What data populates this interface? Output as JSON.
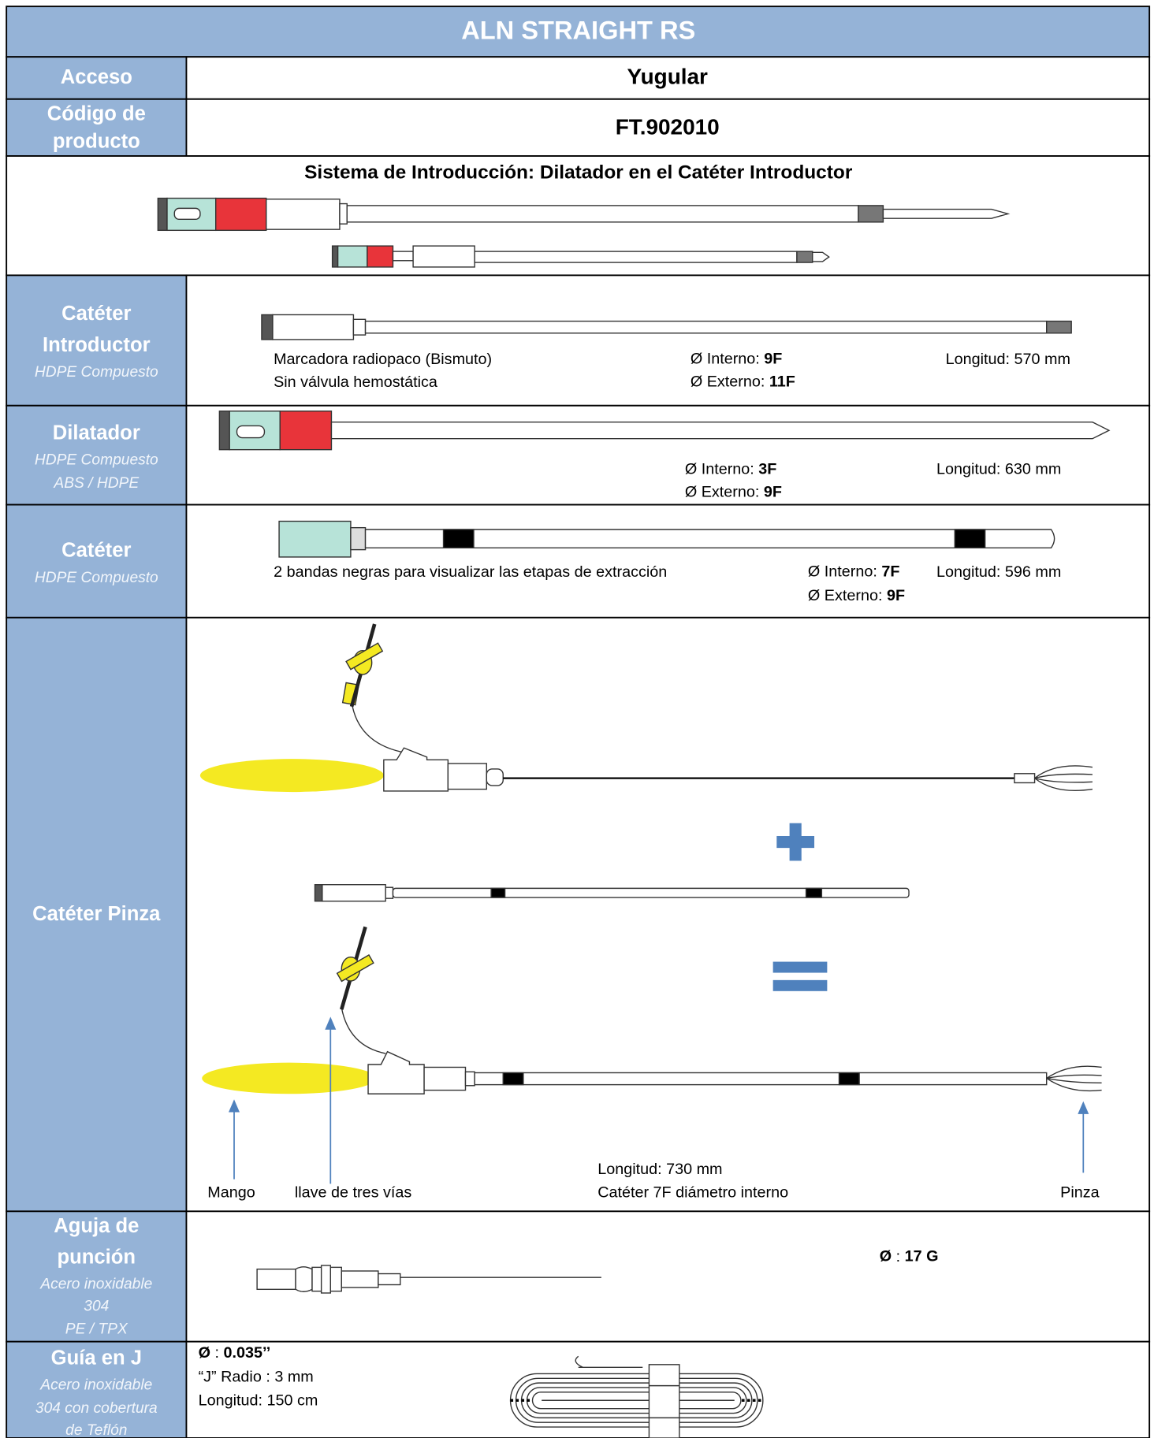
{
  "title": "ALN STRAIGHT RS",
  "acceso": {
    "label": "Acceso",
    "value": "Yugular"
  },
  "codigo": {
    "label": [
      "Código de",
      "producto"
    ],
    "value": "FT.902010"
  },
  "sistema": {
    "title": "Sistema de Introducción: Dilatador en el Catéter Introductor"
  },
  "introductor": {
    "label": [
      "Catéter",
      "Introductor"
    ],
    "materials": [
      "HDPE Compuesto"
    ],
    "notes": [
      "Marcadora radiopaco (Bismuto)",
      "Sin válvula hemostática"
    ],
    "interno_label": "Ø Interno:",
    "interno": "9F",
    "externo_label": "Ø Externo:",
    "externo": "11F",
    "longitud": "Longitud: 570 mm"
  },
  "dilatador": {
    "label": [
      "Dilatador"
    ],
    "materials": [
      "HDPE Compuesto",
      "ABS / HDPE"
    ],
    "interno_label": "Ø Interno:",
    "interno": "3F",
    "externo_label": "Ø Externo:",
    "externo": "9F",
    "longitud": "Longitud: 630 mm"
  },
  "cateter": {
    "label": [
      "Catéter"
    ],
    "materials": [
      "HDPE Compuesto"
    ],
    "note": "2 bandas negras para visualizar las etapas de extracción",
    "interno_label": "Ø Interno:",
    "interno": "7F",
    "externo_label": "Ø Externo:",
    "externo": "9F",
    "longitud": "Longitud: 596 mm"
  },
  "pinza": {
    "label": [
      "Catéter Pinza"
    ],
    "mango": "Mango",
    "llave": "llave de tres vías",
    "longitud": "Longitud: 730 mm",
    "diametro": "Catéter 7F diámetro interno",
    "pinza": "Pinza"
  },
  "aguja": {
    "label": [
      "Aguja de",
      "punción"
    ],
    "materials": [
      "Acero inoxidable",
      "304",
      "PE / TPX"
    ],
    "diametro_label": "Ø",
    "diametro": "17 G"
  },
  "guia": {
    "label": [
      "Guía en J"
    ],
    "materials": [
      "Acero inoxidable",
      "304 con cobertura",
      "de Teflón"
    ],
    "diametro_label": "Ø",
    "diametro": "0.035’’",
    "radio": "“J” Radio : 3 mm",
    "longitud": "Longitud:  150 cm"
  }
}
